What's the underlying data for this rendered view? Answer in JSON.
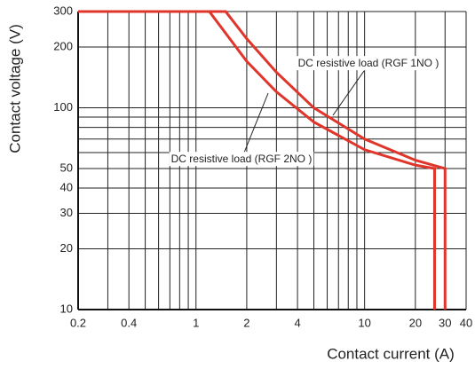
{
  "chart_data": {
    "type": "line",
    "xlabel": "Contact current (A)",
    "ylabel": "Contact voltage (V)",
    "xscale": "log",
    "yscale": "log",
    "xlim": [
      0.2,
      40
    ],
    "ylim": [
      10,
      300
    ],
    "xticks": [
      0.2,
      0.4,
      1,
      2,
      4,
      10,
      20,
      30,
      40
    ],
    "yticks": [
      10,
      20,
      30,
      40,
      50,
      100,
      200,
      300
    ],
    "xgrid": [
      0.2,
      0.3,
      0.4,
      0.5,
      0.6,
      0.7,
      0.8,
      0.9,
      1,
      2,
      3,
      4,
      5,
      6,
      7,
      8,
      9,
      10,
      20,
      30,
      40
    ],
    "ygrid": [
      10,
      20,
      30,
      40,
      50,
      60,
      70,
      80,
      90,
      100,
      200,
      300
    ],
    "grid": true,
    "series": [
      {
        "name": "DC resistive load (RGF 1NO )",
        "color": "#e0352b",
        "x": [
          0.2,
          1.5,
          2,
          3,
          5,
          10,
          20,
          30,
          30
        ],
        "values": [
          300,
          300,
          220,
          150,
          100,
          70,
          55,
          50,
          10
        ]
      },
      {
        "name": "DC resistive load (RGF 2NO )",
        "color": "#e0352b",
        "x": [
          0.2,
          1.2,
          2,
          3,
          5,
          10,
          20,
          26,
          26
        ],
        "values": [
          300,
          300,
          170,
          120,
          85,
          62,
          52,
          50,
          10
        ]
      }
    ]
  }
}
